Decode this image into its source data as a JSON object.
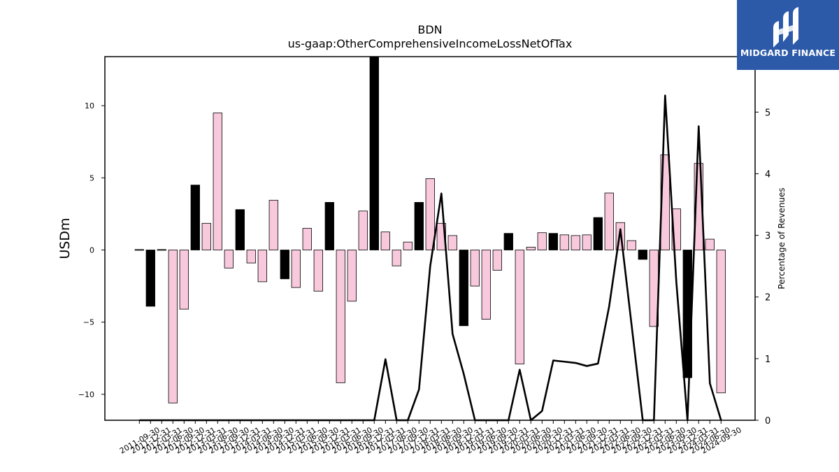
{
  "brand": {
    "name": "MIDGARD FINANCE",
    "bg_color": "#2c5aa9",
    "logo_icon": "midgard-logo-icon"
  },
  "chart_data": {
    "type": "bar",
    "title": "BDN",
    "subtitle": "us-gaap:OtherComprehensiveIncomeLossNetOfTax",
    "ylabel": "USDm",
    "y2label": "Percentage of Revenues",
    "ylim": [
      -11.8,
      13.4
    ],
    "y2lim": [
      0,
      5.9
    ],
    "yticks": [
      -10,
      -5,
      0,
      5,
      10
    ],
    "y2ticks": [
      0,
      1,
      2,
      3,
      4,
      5
    ],
    "grid": false,
    "legend": "none",
    "colors": {
      "positive_quarter": "#000000",
      "other_quarter": "#f8c8dc",
      "line": "#000000"
    },
    "categories": [
      "2011-09-30",
      "2011-12-31",
      "2012-03-31",
      "2012-06-30",
      "2012-09-30",
      "2012-12-31",
      "2013-03-31",
      "2013-06-30",
      "2013-09-30",
      "2013-12-31",
      "2014-03-31",
      "2014-06-30",
      "2014-09-30",
      "2014-12-31",
      "2015-03-31",
      "2015-06-30",
      "2015-09-30",
      "2015-12-31",
      "2016-03-31",
      "2016-06-30",
      "2016-09-30",
      "2016-12-31",
      "2017-03-31",
      "2017-06-30",
      "2017-09-30",
      "2017-12-31",
      "2018-03-31",
      "2018-06-30",
      "2018-09-30",
      "2018-12-31",
      "2019-03-31",
      "2019-06-30",
      "2019-09-30",
      "2019-12-31",
      "2020-03-31",
      "2020-06-30",
      "2020-09-30",
      "2020-12-31",
      "2021-03-31",
      "2021-06-30",
      "2021-09-30",
      "2021-12-31",
      "2022-03-31",
      "2022-06-30",
      "2022-09-30",
      "2022-12-31",
      "2023-03-31",
      "2023-06-30",
      "2023-09-30",
      "2023-12-31",
      "2024-03-31",
      "2024-06-30",
      "2024-09-30"
    ],
    "series": [
      {
        "values": [
          0.03,
          -3.9,
          0.03,
          -10.6,
          -4.1,
          4.5,
          1.85,
          9.5,
          -1.25,
          2.8,
          -0.9,
          -2.2,
          3.45,
          -2.0,
          -2.6,
          1.5,
          -2.85,
          3.3,
          -9.2,
          -3.55,
          2.7,
          13.5,
          1.25,
          -1.1,
          0.55,
          3.3,
          4.95,
          1.85,
          1.0,
          -5.25,
          -2.5,
          -4.8,
          -1.4,
          1.15,
          -7.9,
          0.2,
          1.2,
          1.15,
          1.05,
          1.0,
          1.05,
          2.25,
          3.95,
          1.9,
          0.65,
          -0.65,
          -5.3,
          6.6,
          2.85,
          -8.85,
          6.0,
          0.75,
          -9.9
        ],
        "highlight": [
          true,
          true,
          true,
          false,
          false,
          true,
          false,
          false,
          false,
          true,
          false,
          false,
          false,
          true,
          false,
          false,
          false,
          true,
          false,
          false,
          false,
          true,
          false,
          false,
          false,
          true,
          false,
          false,
          false,
          true,
          false,
          false,
          false,
          true,
          false,
          false,
          false,
          true,
          false,
          false,
          false,
          true,
          false,
          false,
          false,
          true,
          false,
          false,
          false,
          true,
          false,
          false,
          false
        ]
      },
      {
        "name": "Percentage of Revenues",
        "axis": "right",
        "type": "line",
        "values": [
          0,
          0,
          0,
          0,
          0,
          0,
          0,
          0,
          0,
          0,
          0,
          0,
          0,
          0,
          0,
          0,
          0,
          0,
          0,
          0,
          0,
          0,
          0.99,
          0,
          0,
          0.5,
          2.5,
          3.68,
          1.4,
          0.75,
          0,
          0,
          0,
          0,
          0.82,
          0,
          0.15,
          0.97,
          0.95,
          0.93,
          0.88,
          0.92,
          1.85,
          3.1,
          1.55,
          0,
          0,
          5.27,
          2.25,
          0,
          4.77,
          0.6,
          0
        ]
      }
    ]
  }
}
